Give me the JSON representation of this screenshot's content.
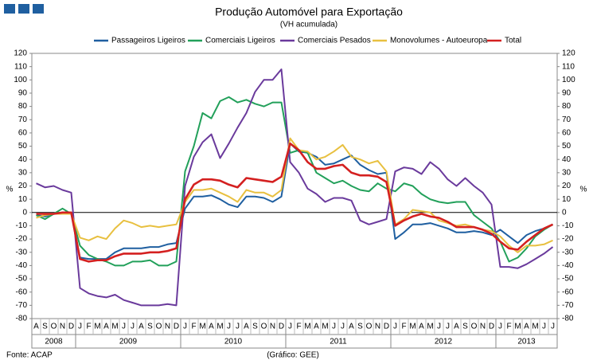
{
  "chart_data": {
    "type": "line",
    "title": "Produção Automóvel para Exportação",
    "subtitle": "(VH acumulada)",
    "y_label": "%",
    "source": "Fonte: ACAP",
    "credit": "(Gráfico: GEE)",
    "categories": [
      "A",
      "S",
      "O",
      "N",
      "D",
      "J",
      "F",
      "M",
      "A",
      "M",
      "J",
      "J",
      "A",
      "S",
      "O",
      "N",
      "D",
      "J",
      "F",
      "M",
      "A",
      "M",
      "J",
      "J",
      "A",
      "S",
      "O",
      "N",
      "D",
      "J",
      "F",
      "M",
      "A",
      "M",
      "J",
      "J",
      "A",
      "S",
      "O",
      "N",
      "D",
      "J",
      "F",
      "M",
      "A",
      "M",
      "J",
      "J",
      "A",
      "S",
      "O",
      "N",
      "D",
      "J",
      "F",
      "M",
      "A",
      "M",
      "J",
      "J"
    ],
    "years": [
      "2008",
      "2009",
      "2010",
      "2011",
      "2012",
      "2013"
    ],
    "ylim": [
      -80,
      120
    ],
    "yticks": [
      -80,
      -70,
      -60,
      -50,
      -40,
      -30,
      -20,
      -10,
      0,
      10,
      20,
      30,
      40,
      50,
      60,
      70,
      80,
      90,
      100,
      110,
      120
    ],
    "series": [
      {
        "name": "Passageiros Ligeiros",
        "color": "#1f5fa0",
        "values": [
          -2,
          -3,
          -1,
          -1,
          -1,
          -34,
          -35,
          -35,
          -35,
          -30,
          -27,
          -27,
          -27,
          -26,
          -26,
          -24,
          -23,
          3,
          12,
          12,
          13,
          10,
          6,
          4,
          12,
          12,
          11,
          8,
          12,
          52,
          46,
          45,
          42,
          36,
          37,
          40,
          43,
          36,
          32,
          29,
          30,
          -20,
          -15,
          -9,
          -9,
          -8,
          -10,
          -12,
          -15,
          -15,
          -14,
          -15,
          -17,
          -13,
          -18,
          -23,
          -17,
          -14,
          -12,
          -9
        ]
      },
      {
        "name": "Comerciais Ligeiros",
        "color": "#22a05a",
        "values": [
          -2,
          -5,
          -1,
          3,
          -1,
          -25,
          -32,
          -35,
          -37,
          -40,
          -40,
          -37,
          -37,
          -36,
          -40,
          -40,
          -37,
          31,
          50,
          75,
          71,
          84,
          87,
          83,
          85,
          82,
          80,
          83,
          83,
          45,
          47,
          45,
          30,
          26,
          22,
          24,
          20,
          17,
          16,
          22,
          18,
          16,
          22,
          20,
          14,
          10,
          8,
          7,
          8,
          8,
          -2,
          -7,
          -12,
          -22,
          -37,
          -34,
          -27,
          -18,
          -13,
          -9
        ]
      },
      {
        "name": "Comerciais Pesados",
        "color": "#6a3a9c",
        "values": [
          22,
          19,
          20,
          17,
          15,
          -57,
          -61,
          -63,
          -64,
          -62,
          -66,
          -68,
          -70,
          -70,
          -70,
          -69,
          -70,
          20,
          42,
          53,
          59,
          41,
          52,
          64,
          75,
          91,
          100,
          100,
          108,
          38,
          30,
          18,
          14,
          8,
          11,
          11,
          9,
          -6,
          -9,
          -7,
          -5,
          31,
          34,
          33,
          29,
          38,
          33,
          25,
          20,
          26,
          20,
          15,
          6,
          -41,
          -41,
          -42,
          -39,
          -35,
          -31,
          -26
        ]
      },
      {
        "name": "Monovolumes - Autoeuropa",
        "color": "#e8c040",
        "values": [
          -4,
          -2,
          -1,
          -1,
          -1,
          -19,
          -21,
          -18,
          -20,
          -12,
          -6,
          -8,
          -11,
          -10,
          -11,
          -10,
          -9,
          8,
          17,
          17,
          18,
          15,
          12,
          8,
          17,
          15,
          15,
          12,
          17,
          56,
          47,
          46,
          40,
          42,
          46,
          51,
          42,
          40,
          37,
          39,
          31,
          -9,
          -5,
          2,
          1,
          0,
          -6,
          -8,
          -10,
          -9,
          -11,
          -13,
          -14,
          -18,
          -25,
          -30,
          -25,
          -25,
          -24,
          -21
        ]
      },
      {
        "name": "Total",
        "color": "#d42020",
        "values": [
          -1,
          -1,
          -1,
          0,
          0,
          -35,
          -37,
          -36,
          -36,
          -33,
          -31,
          -31,
          -31,
          -30,
          -30,
          -29,
          -27,
          10,
          21,
          25,
          25,
          24,
          21,
          19,
          26,
          25,
          24,
          23,
          27,
          52,
          47,
          38,
          33,
          33,
          35,
          36,
          30,
          28,
          28,
          27,
          23,
          -10,
          -6,
          -3,
          -1,
          -3,
          -4,
          -7,
          -11,
          -11,
          -11,
          -13,
          -16,
          -22,
          -27,
          -28,
          -22,
          -17,
          -12,
          -9
        ]
      }
    ]
  }
}
